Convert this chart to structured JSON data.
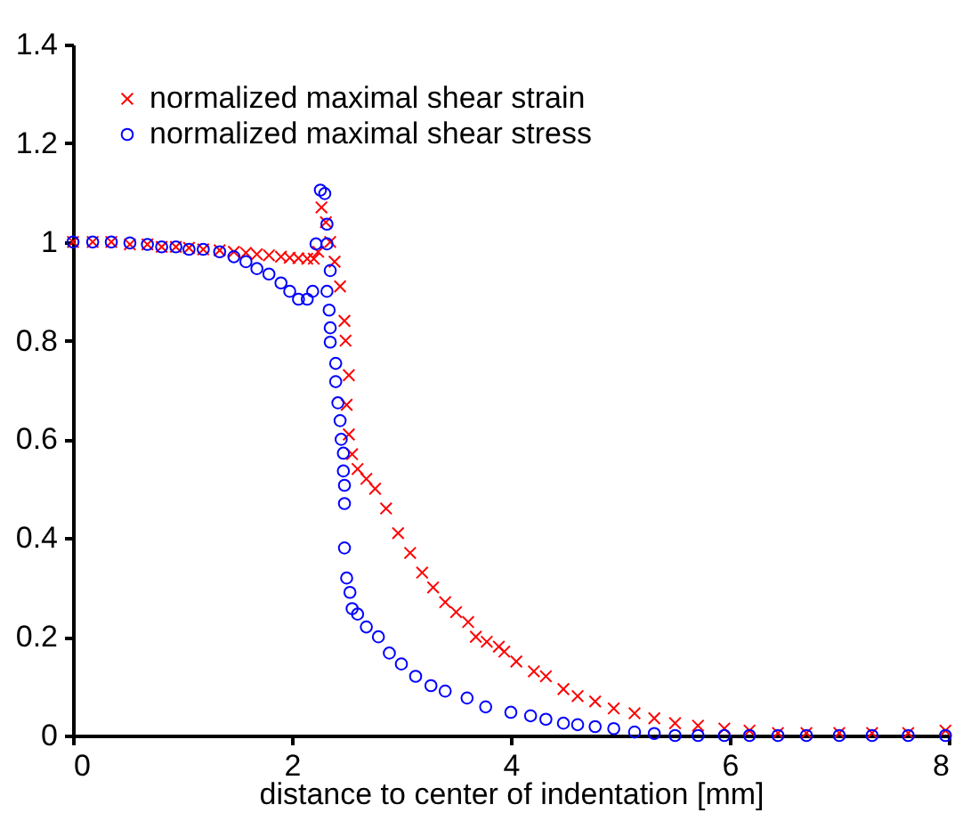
{
  "chart_data": {
    "type": "scatter",
    "xlabel": "distance to center of indentation [mm]",
    "xlim": [
      0,
      8
    ],
    "xticks": [
      0,
      2,
      4,
      6,
      8
    ],
    "ylim": [
      0,
      1.4
    ],
    "yticks": [
      0,
      0.2,
      0.4,
      0.6,
      0.8,
      1,
      1.2,
      1.4
    ],
    "grid": false,
    "legend": "top left",
    "series": [
      {
        "name": "normalized maximal shear strain",
        "color": "#ff0000",
        "marker": "cross",
        "x": [
          0,
          0.18,
          0.35,
          0.52,
          0.68,
          0.81,
          0.94,
          1.06,
          1.19,
          1.34,
          1.47,
          1.58,
          1.68,
          1.79,
          1.9,
          1.98,
          2.06,
          2.14,
          2.2,
          2.24,
          2.27,
          2.31,
          2.35,
          2.39,
          2.44,
          2.48,
          2.49,
          2.5,
          2.52,
          2.52,
          2.55,
          2.6,
          2.68,
          2.76,
          2.86,
          2.97,
          3.08,
          3.19,
          3.29,
          3.4,
          3.5,
          3.61,
          3.68,
          3.78,
          3.89,
          3.94,
          4.05,
          4.21,
          4.32,
          4.48,
          4.61,
          4.77,
          4.94,
          5.13,
          5.31,
          5.5,
          5.71,
          5.95,
          6.18,
          6.44,
          6.7,
          7.0,
          7.3,
          7.63,
          7.97
        ],
        "values": [
          1,
          1,
          1,
          0.995,
          0.995,
          0.99,
          0.99,
          0.988,
          0.985,
          0.983,
          0.98,
          0.978,
          0.975,
          0.973,
          0.97,
          0.968,
          0.967,
          0.966,
          0.966,
          0.98,
          1.07,
          1.04,
          1.0,
          0.96,
          0.91,
          0.84,
          0.8,
          0.67,
          0.73,
          0.61,
          0.57,
          0.54,
          0.52,
          0.5,
          0.46,
          0.41,
          0.37,
          0.33,
          0.3,
          0.27,
          0.25,
          0.23,
          0.2,
          0.19,
          0.18,
          0.17,
          0.15,
          0.13,
          0.12,
          0.094,
          0.08,
          0.069,
          0.055,
          0.045,
          0.035,
          0.025,
          0.02,
          0.014,
          0.01,
          0.005,
          0.005,
          0.005,
          0.005,
          0.005,
          0.01
        ]
      },
      {
        "name": "normalized maximal shear stress",
        "color": "#0000ff",
        "marker": "circle",
        "x": [
          0,
          0.18,
          0.35,
          0.52,
          0.68,
          0.81,
          0.94,
          1.06,
          1.19,
          1.34,
          1.47,
          1.58,
          1.68,
          1.79,
          1.9,
          1.98,
          2.06,
          2.14,
          2.19,
          2.22,
          2.26,
          2.3,
          2.32,
          2.32,
          2.35,
          2.32,
          2.34,
          2.35,
          2.35,
          2.4,
          2.4,
          2.42,
          2.44,
          2.45,
          2.47,
          2.47,
          2.48,
          2.48,
          2.48,
          2.5,
          2.53,
          2.55,
          2.6,
          2.68,
          2.79,
          2.89,
          3.0,
          3.13,
          3.27,
          3.4,
          3.6,
          3.77,
          4.0,
          4.18,
          4.32,
          4.48,
          4.61,
          4.77,
          4.94,
          5.13,
          5.31,
          5.5,
          5.71,
          5.95,
          6.18,
          6.44,
          6.7,
          7.0,
          7.3,
          7.63,
          7.97
        ],
        "values": [
          1,
          1,
          1,
          0.998,
          0.995,
          0.99,
          0.99,
          0.985,
          0.985,
          0.98,
          0.97,
          0.96,
          0.946,
          0.935,
          0.917,
          0.9,
          0.884,
          0.884,
          0.9,
          0.996,
          1.105,
          1.098,
          1.036,
          0.996,
          0.942,
          0.9,
          0.862,
          0.826,
          0.797,
          0.754,
          0.717,
          0.674,
          0.638,
          0.6,
          0.572,
          0.536,
          0.507,
          0.47,
          0.38,
          0.319,
          0.29,
          0.257,
          0.246,
          0.22,
          0.2,
          0.167,
          0.145,
          0.12,
          0.101,
          0.09,
          0.076,
          0.058,
          0.047,
          0.04,
          0.033,
          0.025,
          0.022,
          0.018,
          0.014,
          0.007,
          0.004,
          0,
          0,
          0,
          0,
          0,
          0,
          0,
          0,
          0,
          0
        ]
      }
    ]
  }
}
